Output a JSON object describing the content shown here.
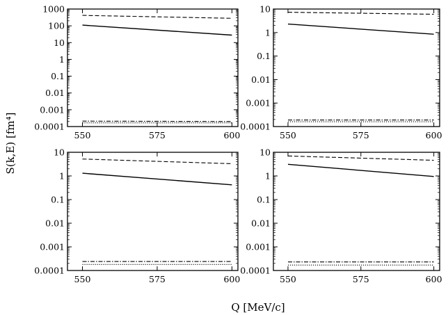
{
  "figure": {
    "ylabel": "S(k,E) [fm⁴]",
    "xlabel": "Q [MeV/c]"
  },
  "chart_data": [
    {
      "type": "line",
      "panel": "top-left",
      "y_scale": "log",
      "xlim": [
        545,
        602
      ],
      "ylim": [
        0.0001,
        1000
      ],
      "x_ticks": [
        "550",
        "575",
        "600"
      ],
      "y_ticks": [
        "0.0001",
        "0.001",
        "0.01",
        "0.1",
        "1",
        "10",
        "100",
        "1000"
      ],
      "series": [
        {
          "style": "dashed",
          "x": [
            550,
            600
          ],
          "y": [
            420,
            280
          ]
        },
        {
          "style": "solid",
          "x": [
            550,
            600
          ],
          "y": [
            110,
            28
          ]
        },
        {
          "style": "dash-dot",
          "x": [
            550,
            600
          ],
          "y": [
            0.00021,
            0.0002
          ]
        },
        {
          "style": "dotted",
          "x": [
            550,
            600
          ],
          "y": [
            0.000165,
            0.000165
          ]
        }
      ]
    },
    {
      "type": "line",
      "panel": "top-right",
      "y_scale": "log",
      "xlim": [
        545,
        602
      ],
      "ylim": [
        0.0001,
        10
      ],
      "x_ticks": [
        "550",
        "575",
        "600"
      ],
      "y_ticks": [
        "0.0001",
        "0.001",
        "0.01",
        "0.1",
        "1",
        "10"
      ],
      "series": [
        {
          "style": "dashed",
          "x": [
            550,
            600
          ],
          "y": [
            7.3,
            6.0
          ]
        },
        {
          "style": "solid",
          "x": [
            550,
            600
          ],
          "y": [
            2.3,
            0.85
          ]
        },
        {
          "style": "dash-dot",
          "x": [
            550,
            600
          ],
          "y": [
            0.00019,
            0.00019
          ]
        },
        {
          "style": "dotted",
          "x": [
            550,
            600
          ],
          "y": [
            0.00016,
            0.00016
          ]
        }
      ]
    },
    {
      "type": "line",
      "panel": "bottom-left",
      "y_scale": "log",
      "xlim": [
        545,
        602
      ],
      "ylim": [
        0.0001,
        10
      ],
      "x_ticks": [
        "550",
        "575",
        "600"
      ],
      "y_ticks": [
        "0.0001",
        "0.001",
        "0.01",
        "0.1",
        "1",
        "10"
      ],
      "series": [
        {
          "style": "dashed",
          "x": [
            550,
            600
          ],
          "y": [
            5.2,
            3.3
          ]
        },
        {
          "style": "solid",
          "x": [
            550,
            600
          ],
          "y": [
            1.3,
            0.42
          ]
        },
        {
          "style": "dash-dot",
          "x": [
            550,
            600
          ],
          "y": [
            0.00024,
            0.00024
          ]
        },
        {
          "style": "dotted",
          "x": [
            550,
            600
          ],
          "y": [
            0.00018,
            0.00018
          ]
        }
      ]
    },
    {
      "type": "line",
      "panel": "bottom-right",
      "y_scale": "log",
      "xlim": [
        545,
        602
      ],
      "ylim": [
        0.0001,
        10
      ],
      "x_ticks": [
        "550",
        "575",
        "600"
      ],
      "y_ticks": [
        "0.0001",
        "0.001",
        "0.01",
        "0.1",
        "1",
        "10"
      ],
      "series": [
        {
          "style": "dashed",
          "x": [
            550,
            600
          ],
          "y": [
            7.0,
            4.6
          ]
        },
        {
          "style": "solid",
          "x": [
            550,
            600
          ],
          "y": [
            3.1,
            0.95
          ]
        },
        {
          "style": "dash-dot",
          "x": [
            550,
            600
          ],
          "y": [
            0.00023,
            0.00023
          ]
        },
        {
          "style": "dotted",
          "x": [
            550,
            600
          ],
          "y": [
            0.00017,
            0.00017
          ]
        }
      ]
    }
  ]
}
